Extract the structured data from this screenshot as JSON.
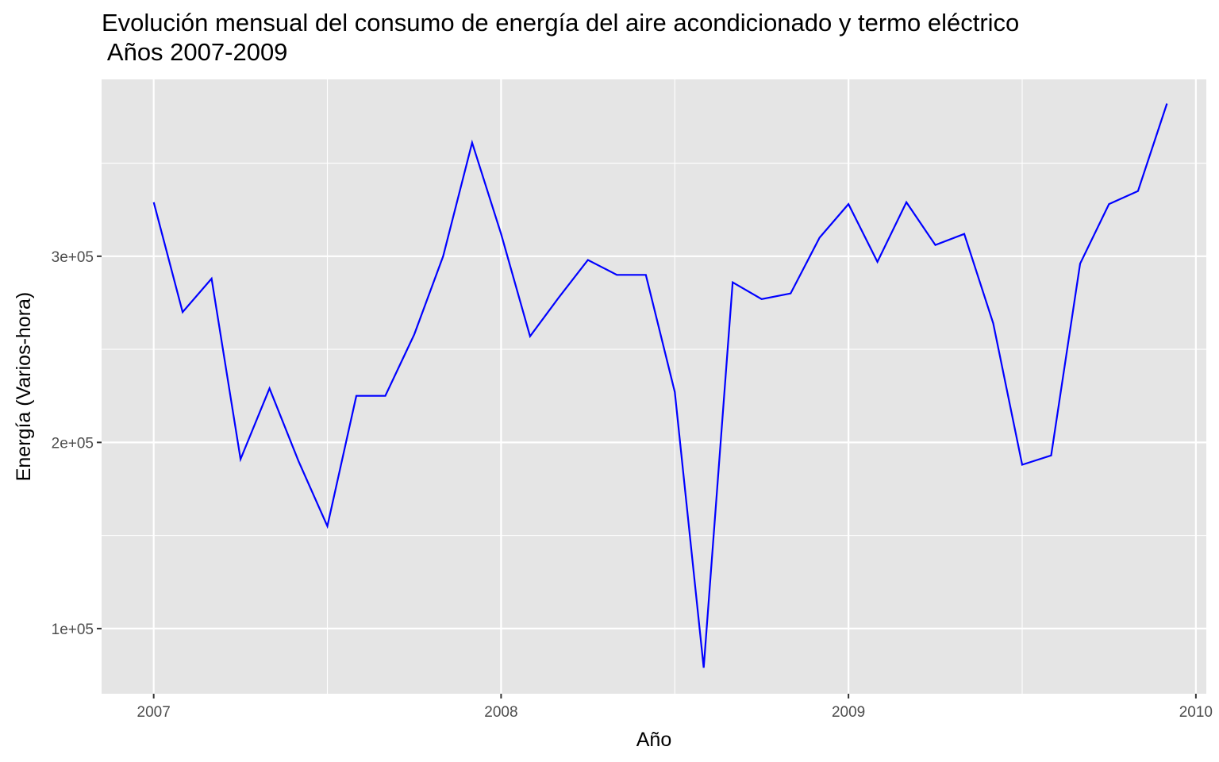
{
  "chart_data": {
    "type": "line",
    "title": "Evolución mensual del consumo de energía del aire acondicionado y termo eléctrico",
    "subtitle": " Años 2007-2009",
    "xlabel": "Año",
    "ylabel": "Energía (Varios-hora)",
    "xlim": [
      2006.85,
      2010.03
    ],
    "ylim": [
      65000,
      395000
    ],
    "x_ticks": [
      2007,
      2008,
      2009,
      2010
    ],
    "x_tick_labels": [
      "2007",
      "2008",
      "2009",
      "2010"
    ],
    "y_ticks": [
      100000,
      200000,
      300000
    ],
    "y_tick_labels": [
      "1e+05",
      "2e+05",
      "3e+05"
    ],
    "grid": true,
    "line_color": "#0000ff",
    "panel_color": "#e5e5e5",
    "series": [
      {
        "x": [
          "2007-01",
          "2007-02",
          "2007-03",
          "2007-04",
          "2007-05",
          "2007-06",
          "2007-07",
          "2007-08",
          "2007-09",
          "2007-10",
          "2007-11",
          "2007-12",
          "2008-01",
          "2008-02",
          "2008-03",
          "2008-04",
          "2008-05",
          "2008-06",
          "2008-07",
          "2008-08",
          "2008-09",
          "2008-10",
          "2008-11",
          "2008-12",
          "2009-01",
          "2009-02",
          "2009-03",
          "2009-04",
          "2009-05",
          "2009-06",
          "2009-07",
          "2009-08",
          "2009-09",
          "2009-10",
          "2009-11",
          "2009-12"
        ],
        "values": [
          329000,
          270000,
          288000,
          191000,
          229000,
          190000,
          155000,
          225000,
          225000,
          258000,
          300000,
          361000,
          312000,
          257000,
          278000,
          298000,
          290000,
          290000,
          227000,
          79000,
          286000,
          277000,
          280000,
          310000,
          328000,
          297000,
          329000,
          306000,
          312000,
          264000,
          188000,
          193000,
          296000,
          328000,
          335000,
          382000
        ]
      }
    ]
  }
}
